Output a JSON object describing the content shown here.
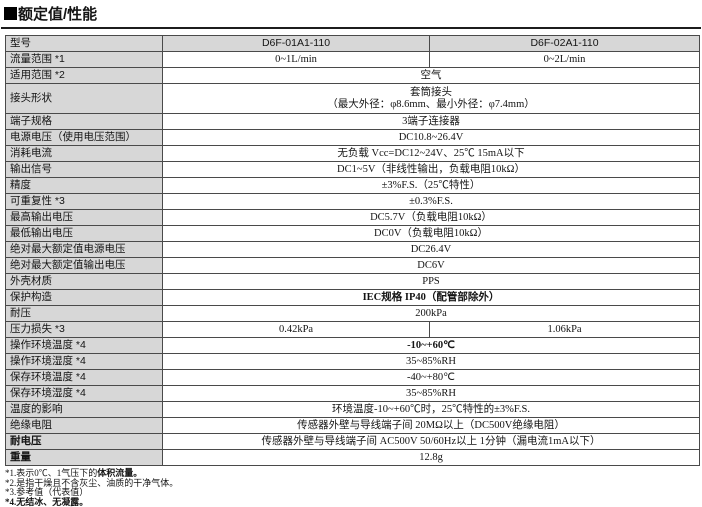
{
  "section": {
    "title": "额定值/性能",
    "marker_icon": "black-square"
  },
  "colors": {
    "label_bg": "#d7d7d7",
    "border": "#4a4a4a",
    "text": "#141414"
  },
  "table": {
    "rows": [
      {
        "label": "型号",
        "header": true,
        "cells": [
          {
            "text": "D6F-01A1-110"
          },
          {
            "text": "D6F-02A1-110"
          }
        ]
      },
      {
        "label": "流量范围 *1",
        "cells": [
          {
            "text": "0~1L/min"
          },
          {
            "text": "0~2L/min"
          }
        ]
      },
      {
        "label": "适用范围 *2",
        "cells": [
          {
            "text": "空气",
            "colspan": 2
          }
        ]
      },
      {
        "label": "接头形状",
        "tall": true,
        "cells": [
          {
            "text": "套筒接头\n（最大外径：φ8.6mm、最小外径：φ7.4mm）",
            "colspan": 2
          }
        ]
      },
      {
        "label": "端子规格",
        "cells": [
          {
            "text": "3端子连接器",
            "colspan": 2
          }
        ]
      },
      {
        "label": "电源电压（使用电压范围）",
        "cells": [
          {
            "text": "DC10.8~26.4V",
            "colspan": 2
          }
        ]
      },
      {
        "label": "消耗电流",
        "cells": [
          {
            "text": "无负载 Vcc=DC12~24V、25℃ 15mA以下",
            "colspan": 2
          }
        ]
      },
      {
        "label": "输出信号",
        "cells": [
          {
            "text": "DC1~5V（非线性输出，负载电阻10kΩ）",
            "colspan": 2
          }
        ]
      },
      {
        "label": "精度",
        "cells": [
          {
            "text": "±3%F.S.（25℃特性）",
            "colspan": 2
          }
        ]
      },
      {
        "label": "可重复性 *3",
        "cells": [
          {
            "text": "±0.3%F.S.",
            "colspan": 2
          }
        ]
      },
      {
        "label": "最高输出电压",
        "cells": [
          {
            "text": "DC5.7V（负载电阻10kΩ）",
            "colspan": 2
          }
        ]
      },
      {
        "label": "最低输出电压",
        "cells": [
          {
            "text": "DC0V（负载电阻10kΩ）",
            "colspan": 2
          }
        ]
      },
      {
        "label": "绝对最大额定值电源电压",
        "cells": [
          {
            "text": "DC26.4V",
            "colspan": 2
          }
        ]
      },
      {
        "label": "绝对最大额定值输出电压",
        "cells": [
          {
            "text": "DC6V",
            "colspan": 2
          }
        ]
      },
      {
        "label": "外壳材质",
        "cells": [
          {
            "text": "PPS",
            "colspan": 2
          }
        ]
      },
      {
        "label": "保护构造",
        "cells": [
          {
            "text": "IEC规格 IP40（配管部除外）",
            "colspan": 2,
            "bold": true
          }
        ]
      },
      {
        "label": "耐压",
        "cells": [
          {
            "text": "200kPa",
            "colspan": 2
          }
        ]
      },
      {
        "label": "压力损失 *3",
        "cells": [
          {
            "text": "0.42kPa"
          },
          {
            "text": "1.06kPa"
          }
        ]
      },
      {
        "label": "操作环境温度 *4",
        "cells": [
          {
            "text": "-10~+60℃",
            "colspan": 2,
            "bold": true
          }
        ]
      },
      {
        "label": "操作环境湿度 *4",
        "cells": [
          {
            "text": "35~85%RH",
            "colspan": 2
          }
        ]
      },
      {
        "label": "保存环境温度 *4",
        "cells": [
          {
            "text": "-40~+80℃",
            "colspan": 2
          }
        ]
      },
      {
        "label": "保存环境湿度 *4",
        "cells": [
          {
            "text": "35~85%RH",
            "colspan": 2
          }
        ]
      },
      {
        "label": "温度的影响",
        "cells": [
          {
            "text": "环境温度-10~+60℃时，25℃特性的±3%F.S.",
            "colspan": 2
          }
        ]
      },
      {
        "label": "绝缘电阻",
        "cells": [
          {
            "text": "传感器外壁与导线端子间 20MΩ以上（DC500V绝缘电阻）",
            "colspan": 2
          }
        ]
      },
      {
        "label": "耐电压",
        "label_bold": true,
        "cells": [
          {
            "text": "传感器外壁与导线端子间 AC500V 50/60Hz以上 1分钟（漏电流1mA以下）",
            "colspan": 2
          }
        ]
      },
      {
        "label": "重量",
        "label_bold": true,
        "cells": [
          {
            "text": "12.8g",
            "colspan": 2
          }
        ]
      }
    ]
  },
  "footnotes": [
    {
      "text": "*1.表示0℃、1气压下的",
      "bold_text": "体积流量。"
    },
    {
      "text": "*2.是指干燥且不含灰尘、油质的干净气体。",
      "bold_text": ""
    },
    {
      "text": "*3.参考值（代表值）",
      "bold_text": ""
    },
    {
      "text": "",
      "bold_text": "*4.无结冰、无凝露。"
    }
  ]
}
